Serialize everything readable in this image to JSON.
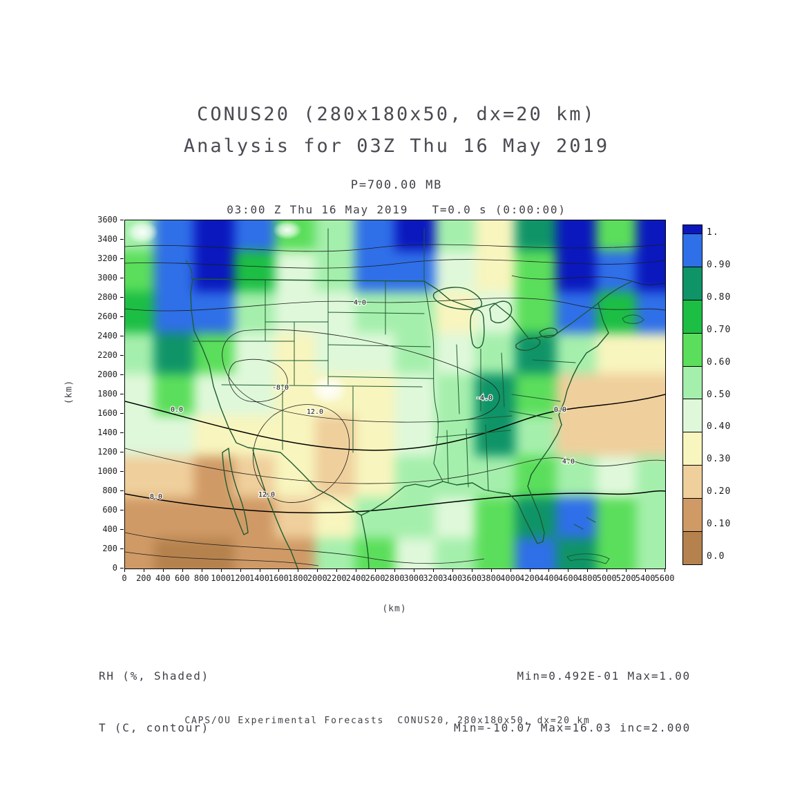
{
  "header": {
    "title_line1": "CONUS20 (280x180x50, dx=20 km)",
    "title_line2": "Analysis for 03Z Thu 16 May 2019",
    "pressure_label": "P=700.00 MB",
    "time_label": "03:00 Z Thu 16 May 2019   T=0.0 s (0:00:00)"
  },
  "axes": {
    "x_label": "(km)",
    "y_label": "(km)",
    "x_min": 0,
    "x_max": 5600,
    "x_step": 200,
    "y_min": 0,
    "y_max": 3600,
    "y_step": 200
  },
  "colorbar": {
    "labels_top_to_bottom": [
      "1.",
      "0.90",
      "0.80",
      "0.70",
      "0.60",
      "0.50",
      "0.40",
      "0.30",
      "0.20",
      "0.10",
      "0.0"
    ]
  },
  "legend": {
    "shaded_label": "RH (%, Shaded)",
    "contour_label": "T (C, contour)",
    "shaded_minmax": "Min=0.492E-01 Max=1.00",
    "contour_minmax": "Min=-10.07 Max=16.03 inc=2.000"
  },
  "footer": {
    "text": "CAPS/OU Experimental Forecasts  CONUS20, 280x180x50, dx=20 km"
  },
  "chart_data": {
    "type": "heatmap",
    "title": "CONUS20 (280x180x50, dx=20 km) Analysis for 03Z Thu 16 May 2019",
    "level": "P=700.00 MB",
    "valid_time": "03:00 Z Thu 16 May 2019",
    "forecast_time": "T=0.0 s (0:00:00)",
    "shaded_field": {
      "name": "RH (%, Shaded)",
      "min": 0.0492,
      "max": 1.0
    },
    "contour_field": {
      "name": "T (C, contour)",
      "min": -10.07,
      "max": 16.03,
      "increment": 2.0
    },
    "xlabel": "(km)",
    "ylabel": "(km)",
    "xlim": [
      0,
      5600
    ],
    "ylim": [
      0,
      3600
    ],
    "grid": false,
    "legend_position": "right-colorbar",
    "colorbar_levels": [
      0.0,
      0.1,
      0.2,
      0.3,
      0.4,
      0.5,
      0.6,
      0.7,
      0.8,
      0.9,
      1.0
    ],
    "colorbar_colors_low_to_high": [
      "#B5824E",
      "#D09A66",
      "#EFCF9C",
      "#F8F5BE",
      "#DFF8DA",
      "#A5EFAC",
      "#5BDE5B",
      "#1CBE44",
      "#0F9468",
      "#2F6FE8",
      "#0A18BE"
    ],
    "rh_grid": {
      "description": "Approximate RH fraction sampled on a coarse grid from the shaded field; rows north to south, columns west to east over x 0-5600 km, y 0-3600 km",
      "nx": 14,
      "ny": 9,
      "values": [
        [
          0.5,
          0.9,
          1.0,
          0.9,
          0.6,
          0.5,
          0.9,
          1.0,
          0.5,
          0.3,
          0.8,
          1.0,
          0.65,
          1.0
        ],
        [
          0.6,
          0.95,
          1.0,
          0.7,
          0.45,
          0.55,
          0.92,
          0.95,
          0.45,
          0.3,
          0.6,
          1.0,
          0.9,
          1.0
        ],
        [
          0.7,
          0.92,
          0.95,
          0.55,
          0.4,
          0.45,
          0.5,
          0.58,
          0.38,
          0.45,
          0.62,
          0.9,
          0.7,
          0.95
        ],
        [
          0.55,
          0.8,
          0.62,
          0.45,
          0.35,
          0.4,
          0.45,
          0.5,
          0.4,
          0.58,
          0.85,
          0.55,
          0.32,
          0.38
        ],
        [
          0.48,
          0.62,
          0.48,
          0.44,
          0.33,
          0.38,
          0.34,
          0.45,
          0.52,
          0.82,
          0.6,
          0.28,
          0.22,
          0.25
        ],
        [
          0.42,
          0.4,
          0.33,
          0.35,
          0.3,
          0.27,
          0.33,
          0.4,
          0.58,
          0.85,
          0.55,
          0.28,
          0.22,
          0.28
        ],
        [
          0.28,
          0.25,
          0.18,
          0.23,
          0.3,
          0.28,
          0.38,
          0.5,
          0.55,
          0.58,
          0.62,
          0.58,
          0.48,
          0.52
        ],
        [
          0.15,
          0.13,
          0.1,
          0.13,
          0.22,
          0.35,
          0.5,
          0.55,
          0.48,
          0.6,
          0.8,
          0.95,
          0.68,
          0.58
        ],
        [
          0.1,
          0.08,
          0.08,
          0.12,
          0.16,
          0.5,
          0.6,
          0.48,
          0.55,
          0.68,
          0.9,
          0.82,
          0.62,
          0.55
        ]
      ]
    },
    "contour_labels": [
      {
        "text": "4.0",
        "x_km": 2434,
        "y_km": 2750
      },
      {
        "text": "-4.0",
        "x_km": 3724,
        "y_km": 1764
      },
      {
        "text": "-8.0",
        "x_km": 1611,
        "y_km": 1871
      },
      {
        "text": "0.0",
        "x_km": 537,
        "y_km": 1643
      },
      {
        "text": "0.0",
        "x_km": 4511,
        "y_km": 1643
      },
      {
        "text": "4.0",
        "x_km": 4597,
        "y_km": 1107
      },
      {
        "text": "8.0",
        "x_km": 322,
        "y_km": 743
      },
      {
        "text": "12.0",
        "x_km": 1969,
        "y_km": 1621
      },
      {
        "text": "12.0",
        "x_km": 1468,
        "y_km": 764
      }
    ]
  }
}
